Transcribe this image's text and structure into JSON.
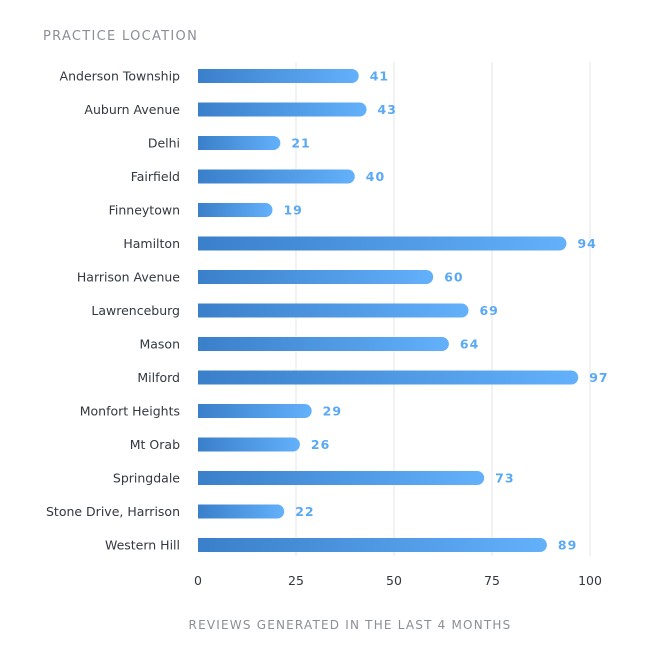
{
  "chart_data": {
    "type": "bar",
    "orientation": "horizontal",
    "ylabel": "PRACTICE LOCATION",
    "xlabel": "REVIEWS GENERATED IN THE LAST 4 MONTHS",
    "categories": [
      "Anderson Township",
      "Auburn Avenue",
      "Delhi",
      "Fairfield",
      "Finneytown",
      "Hamilton",
      "Harrison Avenue",
      "Lawrenceburg",
      "Mason",
      "Milford",
      "Monfort Heights",
      "Mt Orab",
      "Springdale",
      "Stone Drive, Harrison",
      "Western Hill"
    ],
    "values": [
      41,
      43,
      21,
      40,
      19,
      94,
      60,
      69,
      64,
      97,
      29,
      26,
      73,
      22,
      89
    ],
    "xlim": [
      0,
      100
    ],
    "xticks": [
      0,
      25,
      50,
      75,
      100
    ],
    "grid": "vertical",
    "legend": "none",
    "colors": {
      "bar_start": "#3a7fc9",
      "bar_end": "#63b0fb",
      "value_label": "#5aa9f5",
      "gridline": "#e4e6e9"
    }
  }
}
